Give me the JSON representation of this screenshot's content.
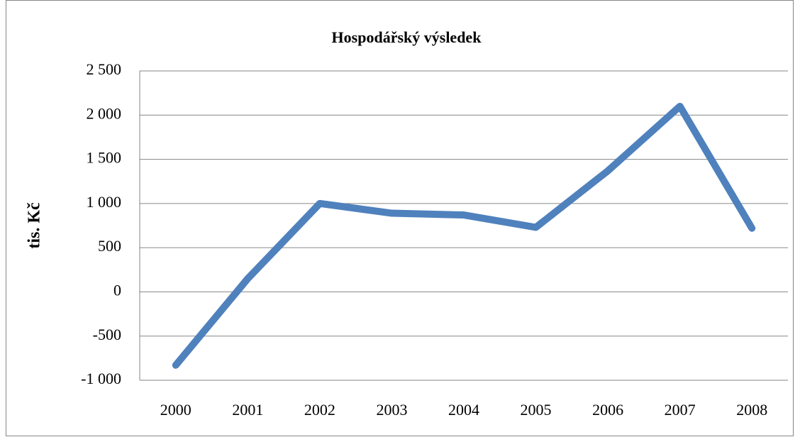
{
  "chart_data": {
    "type": "line",
    "title": "Hospodářský výsledek",
    "y_label": "tis. Kč",
    "categories": [
      "2000",
      "2001",
      "2002",
      "2003",
      "2004",
      "2005",
      "2006",
      "2007",
      "2008"
    ],
    "series": [
      {
        "color": "#4f81bd",
        "values": [
          -830,
          150,
          1000,
          890,
          870,
          730,
          1370,
          2100,
          720
        ]
      }
    ],
    "ylim": [
      -1000,
      2500
    ],
    "yticks": [
      {
        "value": -1000,
        "label": "-1 000"
      },
      -500,
      0,
      500,
      {
        "value": 1000,
        "label": "1 000"
      },
      {
        "value": 1500,
        "label": "1 500"
      },
      {
        "value": 2000,
        "label": "2 000"
      },
      {
        "value": 2500,
        "label": "2 500"
      }
    ],
    "grid": true
  }
}
